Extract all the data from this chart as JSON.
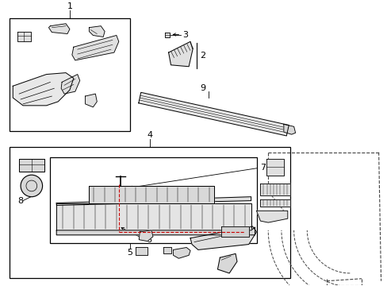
{
  "background_color": "#ffffff",
  "line_color": "#000000",
  "red_line_color": "#cc0000",
  "dashed_color": "#444444",
  "fig_width": 4.89,
  "fig_height": 3.6,
  "dpi": 100
}
